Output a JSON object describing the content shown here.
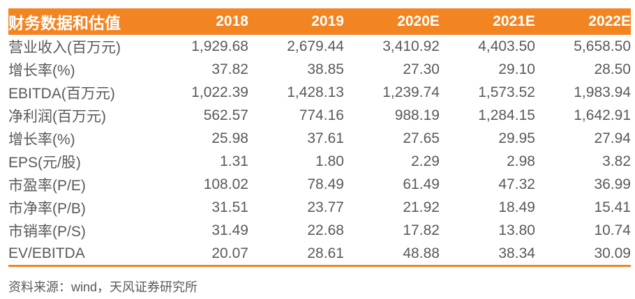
{
  "chart_data": {
    "type": "table",
    "title": "财务数据和估值",
    "columns": [
      "2018",
      "2019",
      "2020E",
      "2021E",
      "2022E"
    ],
    "rows": [
      {
        "label": "营业收入(百万元)",
        "values": [
          "1,929.68",
          "2,679.44",
          "3,410.92",
          "4,403.50",
          "5,658.50"
        ]
      },
      {
        "label": "增长率(%)",
        "values": [
          "37.82",
          "38.85",
          "27.30",
          "29.10",
          "28.50"
        ]
      },
      {
        "label": "EBITDA(百万元)",
        "values": [
          "1,022.39",
          "1,428.13",
          "1,239.74",
          "1,573.52",
          "1,983.94"
        ]
      },
      {
        "label": "净利润(百万元)",
        "values": [
          "562.57",
          "774.16",
          "988.19",
          "1,284.15",
          "1,642.91"
        ]
      },
      {
        "label": "增长率(%)",
        "values": [
          "25.98",
          "37.61",
          "27.65",
          "29.95",
          "27.94"
        ]
      },
      {
        "label": "EPS(元/股)",
        "values": [
          "1.31",
          "1.80",
          "2.29",
          "2.98",
          "3.82"
        ]
      },
      {
        "label": "市盈率(P/E)",
        "values": [
          "108.02",
          "78.49",
          "61.49",
          "47.32",
          "36.99"
        ]
      },
      {
        "label": "市净率(P/B)",
        "values": [
          "31.51",
          "23.77",
          "21.92",
          "18.49",
          "15.41"
        ]
      },
      {
        "label": "市销率(P/S)",
        "values": [
          "31.49",
          "22.68",
          "17.82",
          "13.80",
          "10.74"
        ]
      },
      {
        "label": "EV/EBITDA",
        "values": [
          "20.07",
          "28.61",
          "48.88",
          "38.34",
          "30.09"
        ]
      }
    ]
  },
  "footer": {
    "source_text": "资料来源：wind，天风证券研究所"
  },
  "colors": {
    "accent_orange": "#F28422",
    "body_text_gray": "#595959",
    "header_text": "#FFFFFF"
  }
}
